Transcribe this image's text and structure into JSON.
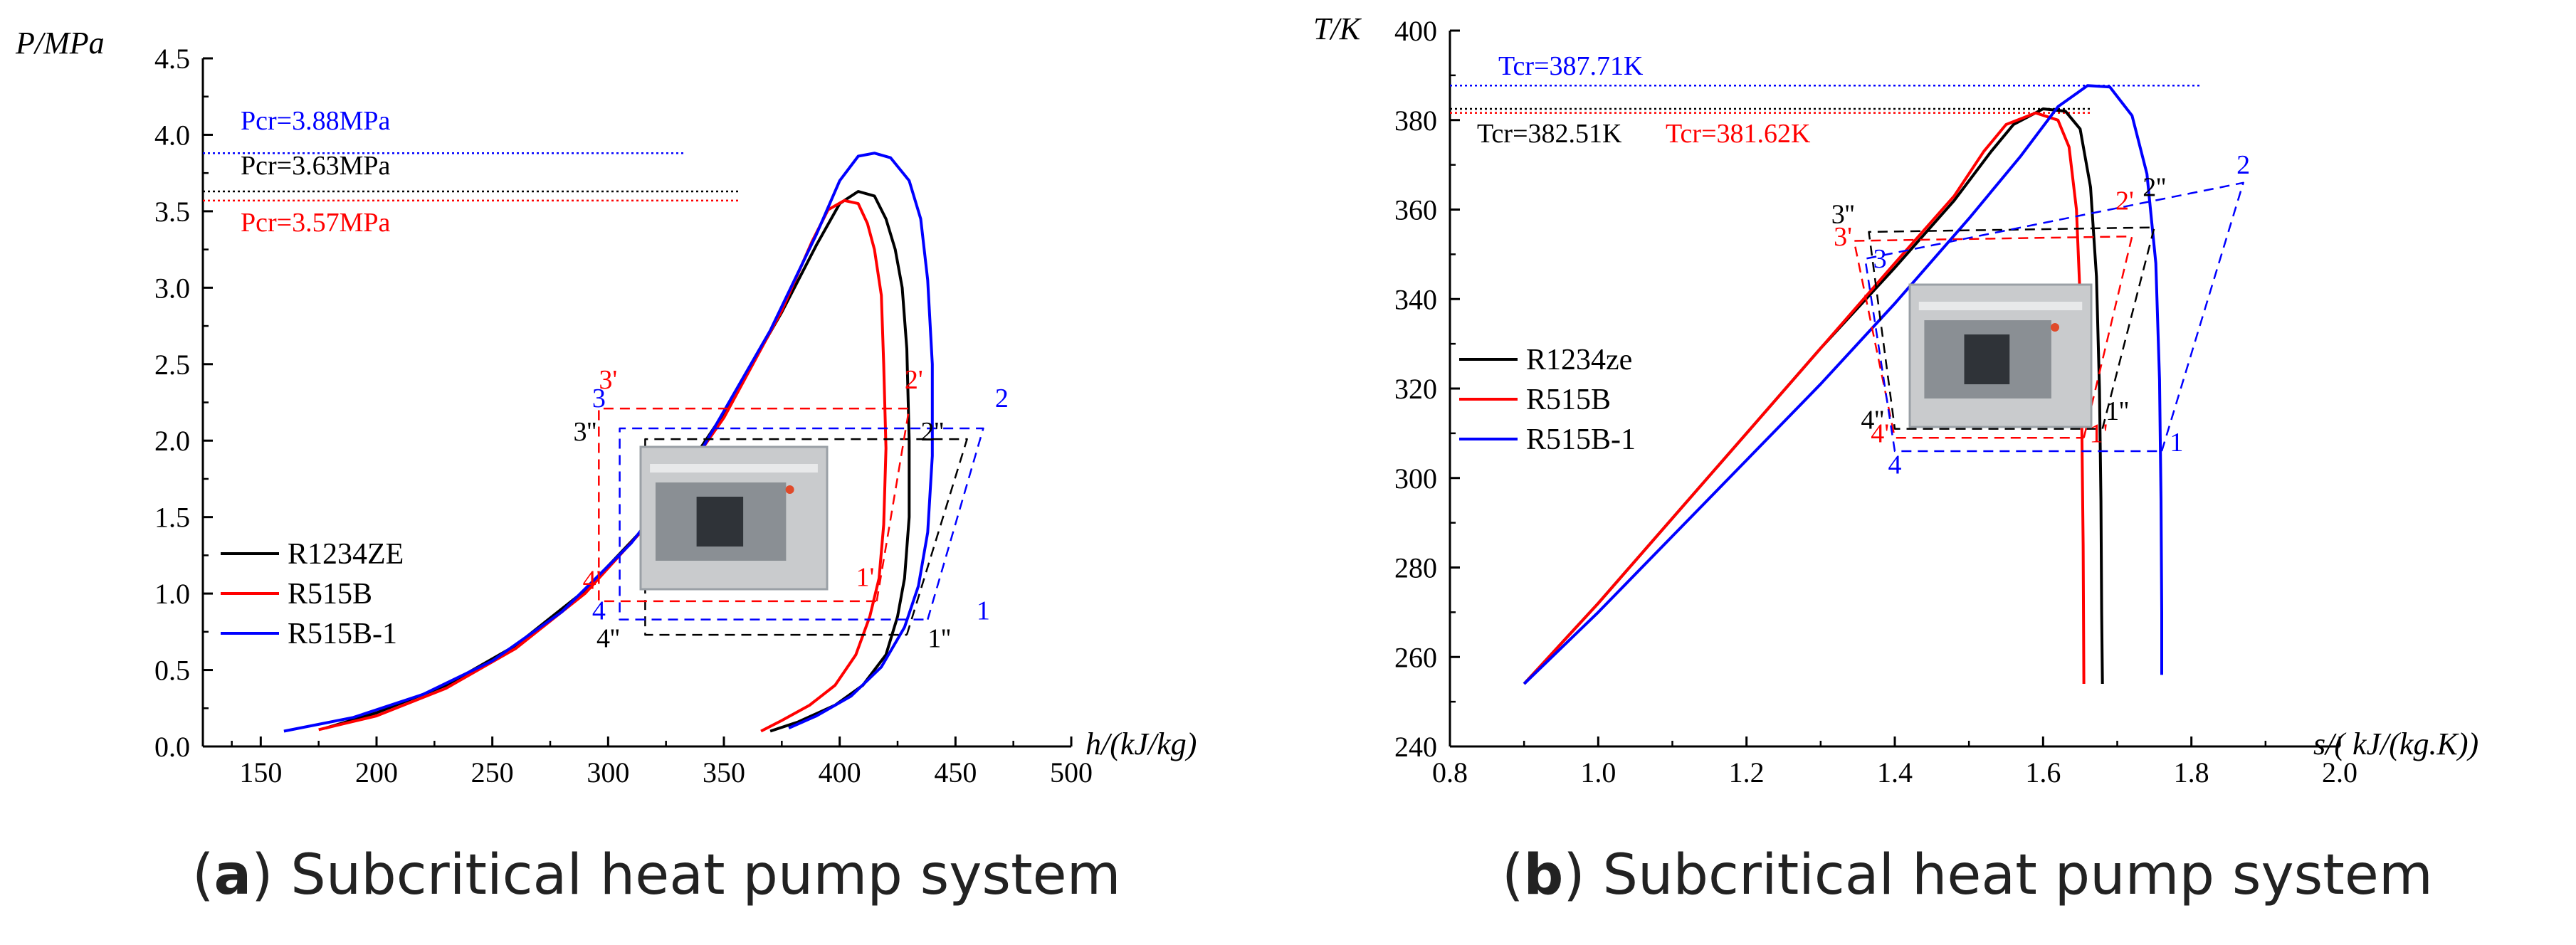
{
  "colors": {
    "black": "#000000",
    "red": "#ff0000",
    "blue": "#0000ff",
    "photo_bg": "#c9cbcd",
    "photo_frame": "#9aa0a6"
  },
  "panel_a": {
    "caption_letter": "a",
    "caption_text": " Subcritical heat pump system",
    "chart_data": {
      "type": "line",
      "title": "",
      "xlabel": "h/(kJ/kg)",
      "ylabel": "P/MPa",
      "xlim": [
        125,
        500
      ],
      "ylim": [
        0,
        4.5
      ],
      "xticks": [
        150,
        200,
        250,
        300,
        350,
        400,
        450,
        500
      ],
      "yticks": [
        0.0,
        0.5,
        1.0,
        1.5,
        2.0,
        2.5,
        3.0,
        3.5,
        4.0,
        4.5
      ],
      "legend": [
        "R1234ZE",
        "R515B",
        "R515B-1"
      ],
      "critical_labels": [
        {
          "text": "Pcr=3.88MPa",
          "value": 3.88,
          "color": "blue"
        },
        {
          "text": "Pcr=3.63MPa",
          "value": 3.63,
          "color": "black"
        },
        {
          "text": "Pcr=3.57MPa",
          "value": 3.57,
          "color": "red"
        }
      ],
      "series": [
        {
          "name": "R1234ZE",
          "color": "black",
          "style": "solid",
          "x": [
            178,
            200,
            230,
            260,
            290,
            320,
            350,
            375,
            390,
            400,
            408,
            415,
            420,
            424,
            427,
            429,
            430,
            430,
            428,
            425,
            420,
            410,
            398,
            382,
            370
          ],
          "y": [
            0.12,
            0.22,
            0.4,
            0.66,
            1.02,
            1.5,
            2.18,
            2.84,
            3.28,
            3.55,
            3.63,
            3.6,
            3.45,
            3.25,
            3.0,
            2.6,
            2.0,
            1.5,
            1.1,
            0.85,
            0.6,
            0.4,
            0.27,
            0.16,
            0.1
          ]
        },
        {
          "name": "R515B",
          "color": "red",
          "style": "solid",
          "x": [
            175,
            200,
            230,
            260,
            290,
            320,
            350,
            375,
            388,
            395,
            402,
            408,
            412,
            415,
            418,
            419,
            420,
            419,
            417,
            413,
            407,
            398,
            387,
            375,
            366
          ],
          "y": [
            0.11,
            0.2,
            0.38,
            0.64,
            1.0,
            1.5,
            2.15,
            2.85,
            3.3,
            3.51,
            3.57,
            3.55,
            3.42,
            3.25,
            2.95,
            2.5,
            1.95,
            1.45,
            1.1,
            0.85,
            0.6,
            0.4,
            0.27,
            0.17,
            0.1
          ]
        },
        {
          "name": "R515B-1",
          "color": "blue",
          "style": "solid",
          "x": [
            160,
            190,
            220,
            250,
            280,
            310,
            340,
            370,
            390,
            400,
            408,
            415,
            422,
            430,
            435,
            438,
            440,
            440,
            438,
            434,
            428,
            418,
            405,
            390,
            378
          ],
          "y": [
            0.1,
            0.19,
            0.34,
            0.56,
            0.88,
            1.33,
            1.93,
            2.72,
            3.35,
            3.7,
            3.86,
            3.88,
            3.85,
            3.7,
            3.45,
            3.05,
            2.5,
            1.9,
            1.4,
            1.05,
            0.78,
            0.52,
            0.33,
            0.2,
            0.12
          ]
        },
        {
          "name": "Cycle R1234ZE",
          "color": "black",
          "style": "dashed",
          "x": [
            429,
            455,
            316,
            316,
            429
          ],
          "y": [
            0.73,
            2.01,
            2.01,
            0.73,
            0.73
          ]
        },
        {
          "name": "Cycle R515B",
          "color": "red",
          "style": "dashed",
          "x": [
            416,
            430,
            296,
            296,
            416
          ],
          "y": [
            0.95,
            2.21,
            2.21,
            0.95,
            0.95
          ]
        },
        {
          "name": "Cycle R515B-1",
          "color": "blue",
          "style": "dashed",
          "x": [
            438,
            462,
            305,
            305,
            438
          ],
          "y": [
            0.83,
            2.08,
            2.08,
            0.83,
            0.83
          ]
        }
      ],
      "point_labels": [
        {
          "text": "1",
          "x": 462,
          "y": 0.83,
          "color": "blue"
        },
        {
          "text": "2",
          "x": 470,
          "y": 2.22,
          "color": "blue"
        },
        {
          "text": "3",
          "x": 296,
          "y": 2.22,
          "color": "blue"
        },
        {
          "text": "4",
          "x": 296,
          "y": 0.83,
          "color": "blue"
        },
        {
          "text": "1'",
          "x": 411,
          "y": 1.05,
          "color": "red"
        },
        {
          "text": "2'",
          "x": 432,
          "y": 2.34,
          "color": "red"
        },
        {
          "text": "3'",
          "x": 300,
          "y": 2.34,
          "color": "red"
        },
        {
          "text": "4'",
          "x": 293,
          "y": 1.03,
          "color": "red"
        },
        {
          "text": "1''",
          "x": 443,
          "y": 0.65,
          "color": "black"
        },
        {
          "text": "2''",
          "x": 440,
          "y": 2.0,
          "color": "black"
        },
        {
          "text": "3''",
          "x": 290,
          "y": 2.0,
          "color": "black"
        },
        {
          "text": "4''",
          "x": 300,
          "y": 0.65,
          "color": "black"
        }
      ]
    }
  },
  "panel_b": {
    "caption_letter": "b",
    "caption_text": " Subcritical heat pump system",
    "chart_data": {
      "type": "line",
      "title": "",
      "xlabel": "s/( kJ/(kg.K))",
      "ylabel": "T/K",
      "xlim": [
        0.8,
        2.0
      ],
      "ylim": [
        240,
        400
      ],
      "xticks": [
        0.8,
        1.0,
        1.2,
        1.4,
        1.6,
        1.8,
        2.0
      ],
      "yticks": [
        240,
        260,
        280,
        300,
        320,
        340,
        360,
        380,
        400
      ],
      "legend": [
        "R1234ze",
        "R515B",
        "R515B-1"
      ],
      "critical_labels": [
        {
          "text": "Tcr=387.71K",
          "value": 387.71,
          "color": "blue"
        },
        {
          "text": "Tcr=382.51K",
          "value": 382.51,
          "color": "black"
        },
        {
          "text": "Tcr=381.62K",
          "value": 381.62,
          "color": "red"
        }
      ],
      "series": [
        {
          "name": "R1234ze",
          "color": "black",
          "style": "solid",
          "x": [
            0.9,
            1.0,
            1.1,
            1.2,
            1.3,
            1.4,
            1.48,
            1.53,
            1.56,
            1.6,
            1.63,
            1.65,
            1.664,
            1.672,
            1.676,
            1.678,
            1.679,
            1.68
          ],
          "y": [
            254,
            272,
            291,
            310,
            329,
            347,
            362,
            373,
            379,
            382.5,
            382,
            378,
            365,
            345,
            320,
            295,
            270,
            254
          ]
        },
        {
          "name": "R515B",
          "color": "red",
          "style": "solid",
          "x": [
            0.9,
            1.0,
            1.1,
            1.2,
            1.3,
            1.4,
            1.48,
            1.52,
            1.55,
            1.59,
            1.62,
            1.635,
            1.645,
            1.65,
            1.652,
            1.654,
            1.655
          ],
          "y": [
            254,
            272,
            291,
            310,
            329,
            348,
            363,
            373,
            379,
            381.6,
            380,
            374,
            360,
            340,
            315,
            285,
            254
          ]
        },
        {
          "name": "R515B-1",
          "color": "blue",
          "style": "solid",
          "x": [
            0.9,
            1.0,
            1.1,
            1.2,
            1.3,
            1.4,
            1.5,
            1.57,
            1.62,
            1.66,
            1.69,
            1.72,
            1.74,
            1.752,
            1.757,
            1.759,
            1.76,
            1.76
          ],
          "y": [
            254,
            270,
            287,
            304,
            321,
            339,
            358,
            372,
            383,
            387.7,
            387.4,
            381,
            368,
            348,
            322,
            295,
            270,
            256
          ]
        },
        {
          "name": "Cycle R1234ze",
          "color": "black",
          "style": "dashed",
          "x": [
            1.68,
            1.75,
            1.365,
            1.4,
            1.68
          ],
          "y": [
            311,
            356,
            355,
            311,
            311
          ]
        },
        {
          "name": "Cycle R515B",
          "color": "red",
          "style": "dashed",
          "x": [
            1.655,
            1.72,
            1.345,
            1.4,
            1.655
          ],
          "y": [
            309,
            354,
            353,
            309,
            309
          ]
        },
        {
          "name": "Cycle R515B-1",
          "color": "blue",
          "style": "dashed",
          "x": [
            1.76,
            1.87,
            1.36,
            1.4,
            1.76
          ],
          "y": [
            306,
            366,
            349,
            306,
            306
          ]
        }
      ],
      "point_labels": [
        {
          "text": "1",
          "x": 1.78,
          "y": 306,
          "color": "blue"
        },
        {
          "text": "2",
          "x": 1.87,
          "y": 368,
          "color": "blue"
        },
        {
          "text": "3",
          "x": 1.38,
          "y": 347,
          "color": "blue"
        },
        {
          "text": "4",
          "x": 1.4,
          "y": 301,
          "color": "blue"
        },
        {
          "text": "1'",
          "x": 1.675,
          "y": 308,
          "color": "red"
        },
        {
          "text": "2'",
          "x": 1.71,
          "y": 360,
          "color": "red"
        },
        {
          "text": "3'",
          "x": 1.33,
          "y": 352,
          "color": "red"
        },
        {
          "text": "4'",
          "x": 1.38,
          "y": 308,
          "color": "red"
        },
        {
          "text": "1''",
          "x": 1.7,
          "y": 313,
          "color": "black"
        },
        {
          "text": "2''",
          "x": 1.75,
          "y": 363,
          "color": "black"
        },
        {
          "text": "3''",
          "x": 1.33,
          "y": 357,
          "color": "black"
        },
        {
          "text": "4''",
          "x": 1.37,
          "y": 311,
          "color": "black"
        }
      ]
    }
  }
}
